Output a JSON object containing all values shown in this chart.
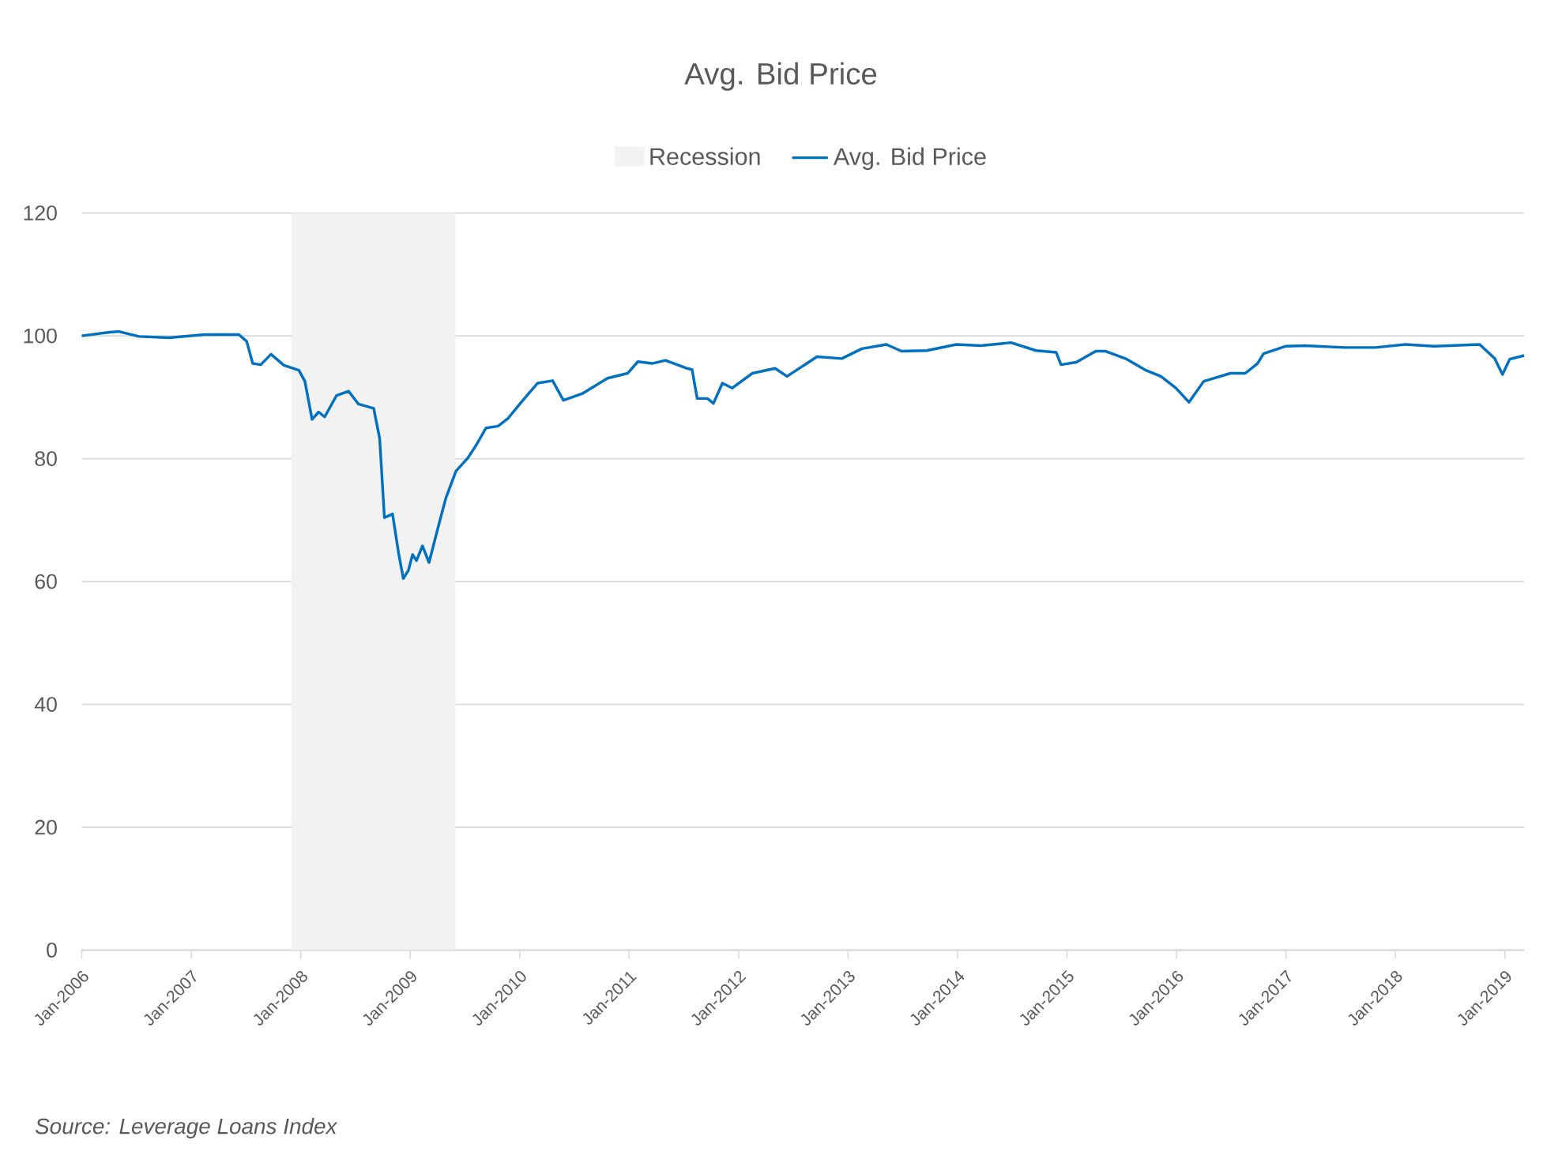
{
  "chart_data": {
    "type": "line",
    "title": "Avg. Bid Price",
    "annotations": [
      "Source: Leverage Loans Index"
    ],
    "xlim": [
      "2006-01-01",
      "2019-03-06"
    ],
    "ylim": [
      0,
      120
    ],
    "yticks": [
      0,
      20,
      40,
      60,
      80,
      100,
      120
    ],
    "xticks": [
      {
        "value": "2006-01",
        "label": "Jan-2006"
      },
      {
        "value": "2007-01",
        "label": "Jan-2007"
      },
      {
        "value": "2008-01",
        "label": "Jan-2008"
      },
      {
        "value": "2009-01",
        "label": "Jan-2009"
      },
      {
        "value": "2010-01",
        "label": "Jan-2010"
      },
      {
        "value": "2011-01",
        "label": "Jan-2011"
      },
      {
        "value": "2012-01",
        "label": "Jan-2012"
      },
      {
        "value": "2013-01",
        "label": "Jan-2013"
      },
      {
        "value": "2014-01",
        "label": "Jan-2014"
      },
      {
        "value": "2015-01",
        "label": "Jan-2015"
      },
      {
        "value": "2016-01",
        "label": "Jan-2016"
      },
      {
        "value": "2017-01",
        "label": "Jan-2017"
      },
      {
        "value": "2018-01",
        "label": "Jan-2018"
      },
      {
        "value": "2019-01",
        "label": "Jan-2019"
      }
    ],
    "grid": "y",
    "legend": "top",
    "bands": [
      {
        "axis": "x",
        "from": "2007-12",
        "to": "2009-06",
        "label": "Recession",
        "color": "#f2f2f2"
      }
    ],
    "x": [
      "2006-01-01",
      "2006-04-03",
      "2006-05-05",
      "2006-07-11",
      "2006-10-19",
      "2007-02-14",
      "2007-06-09",
      "2007-07-05",
      "2007-07-25",
      "2007-08-21",
      "2007-09-24",
      "2007-11-06",
      "2007-12-26",
      "2008-01-15",
      "2008-02-08",
      "2008-03-01",
      "2008-03-21",
      "2008-04-30",
      "2008-06-09",
      "2008-07-12",
      "2008-09-01",
      "2008-09-21",
      "2008-10-07",
      "2008-11-03",
      "2008-11-23",
      "2008-12-09",
      "2008-12-26",
      "2009-01-09",
      "2009-01-22",
      "2009-02-11",
      "2009-03-05",
      "2009-04-04",
      "2009-04-30",
      "2009-06-03",
      "2009-07-12",
      "2009-08-09",
      "2009-09-11",
      "2009-10-21",
      "2009-11-24",
      "2010-01-03",
      "2010-03-02",
      "2010-04-21",
      "2010-05-27",
      "2010-07-29",
      "2010-10-21",
      "2010-12-27",
      "2011-01-30",
      "2011-03-19",
      "2011-05-02",
      "2011-07-14",
      "2011-07-30",
      "2011-08-16",
      "2011-09-19",
      "2011-10-09",
      "2011-11-08",
      "2011-12-11",
      "2012-02-16",
      "2012-05-02",
      "2012-06-11",
      "2012-09-19",
      "2012-12-11",
      "2013-02-16",
      "2013-05-09",
      "2013-06-28",
      "2013-09-20",
      "2013-12-28",
      "2014-03-20",
      "2014-06-28",
      "2014-09-20",
      "2014-11-26",
      "2014-12-12",
      "2015-02-01",
      "2015-04-07",
      "2015-05-10",
      "2015-07-15",
      "2015-09-21",
      "2015-11-10",
      "2015-12-30",
      "2016-02-12",
      "2016-04-01",
      "2016-06-29",
      "2016-08-18",
      "2016-09-28",
      "2016-10-18",
      "2016-12-30",
      "2017-03-05",
      "2017-07-16",
      "2017-10-25",
      "2018-02-03",
      "2018-05-11",
      "2018-10-09",
      "2018-11-28",
      "2018-12-24",
      "2019-01-17",
      "2019-03-06"
    ],
    "series": [
      {
        "name": "Avg. Bid Price",
        "color": "#0070c0",
        "values": [
          100.0,
          100.6,
          100.7,
          99.9,
          99.7,
          100.2,
          100.2,
          99.1,
          95.5,
          95.3,
          97.0,
          95.2,
          94.4,
          92.6,
          86.4,
          87.6,
          86.8,
          90.3,
          91.0,
          88.9,
          88.2,
          83.3,
          70.4,
          71.0,
          64.7,
          60.5,
          61.8,
          64.4,
          63.4,
          65.8,
          63.1,
          68.8,
          73.6,
          78.0,
          80.1,
          82.2,
          85.0,
          85.3,
          86.6,
          89.0,
          92.3,
          92.7,
          89.5,
          90.6,
          93.1,
          93.9,
          95.8,
          95.5,
          96.0,
          94.7,
          94.5,
          89.8,
          89.8,
          89.0,
          92.3,
          91.5,
          93.9,
          94.7,
          93.4,
          96.6,
          96.3,
          97.9,
          98.6,
          97.5,
          97.6,
          98.6,
          98.4,
          98.9,
          97.6,
          97.3,
          95.3,
          95.7,
          97.5,
          97.5,
          96.3,
          94.4,
          93.4,
          91.5,
          89.2,
          92.6,
          93.9,
          93.9,
          95.5,
          97.1,
          98.3,
          98.4,
          98.1,
          98.1,
          98.6,
          98.3,
          98.6,
          96.3,
          93.7,
          96.2,
          96.8
        ]
      }
    ]
  }
}
